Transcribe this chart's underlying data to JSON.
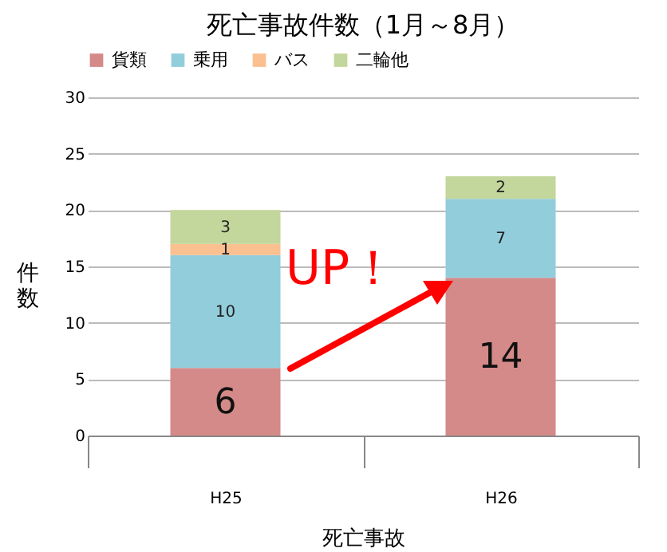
{
  "chart_data": {
    "type": "bar",
    "title": "死亡事故件数（1月～8月）",
    "xlabel": "死亡事故",
    "ylabel": "件数",
    "categories": [
      "H25",
      "H26"
    ],
    "series": [
      {
        "name": "貨類",
        "color": "#d48a88",
        "values": [
          6,
          14
        ]
      },
      {
        "name": "乗用",
        "color": "#92cddc",
        "values": [
          10,
          7
        ]
      },
      {
        "name": "バス",
        "color": "#fac090",
        "values": [
          1,
          null
        ]
      },
      {
        "name": "二輪他",
        "color": "#c3d69b",
        "values": [
          3,
          2
        ]
      }
    ],
    "stacked": true,
    "data_labels": true,
    "legend": "top",
    "grid": "y",
    "ylim": [
      0,
      30
    ],
    "yticks": [
      0,
      5,
      10,
      15,
      20,
      25,
      30
    ],
    "annotations": [
      "UP！"
    ]
  }
}
